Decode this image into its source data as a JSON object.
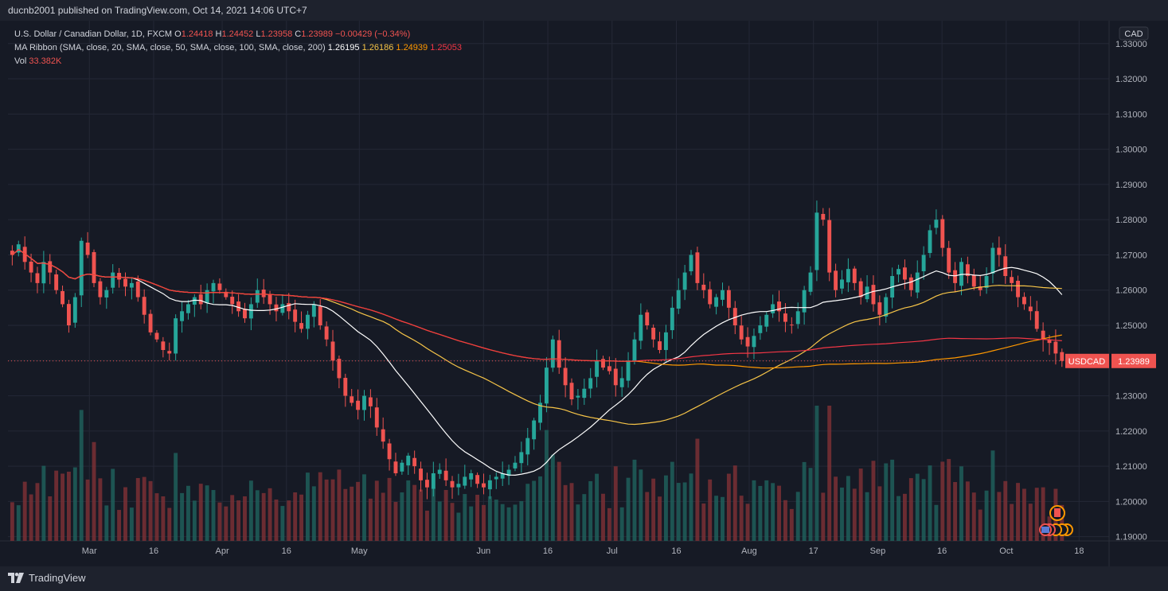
{
  "header": {
    "publisher": "ducnb2001 published on TradingView.com, Oct 14, 2021 14:06 UTC+7"
  },
  "legend": {
    "symbol": "U.S. Dollar / Canadian Dollar, 1D, FXCM",
    "o_label": "O",
    "o": "1.24418",
    "h_label": "H",
    "h": "1.24452",
    "l_label": "L",
    "l": "1.23958",
    "c_label": "C",
    "c": "1.23989",
    "change": "−0.00429 (−0.34%)",
    "ma_label": "MA Ribbon (SMA, close, 20, SMA, close, 50, SMA, close, 100, SMA, close, 200)",
    "ma20": "1.26195",
    "ma50": "1.26186",
    "ma100": "1.24939",
    "ma200": "1.25053",
    "vol_label": "Vol",
    "vol": "33.382K"
  },
  "price_tag": {
    "symbol": "USDCAD",
    "value": "1.23989"
  },
  "footer": {
    "brand": "TradingView"
  },
  "colors": {
    "up": "#26a69a",
    "down": "#ef5350",
    "ma20": "#ffffff",
    "ma50": "#f7c548",
    "ma100": "#ff9800",
    "ma200": "#f23645"
  },
  "chart_data": {
    "type": "candlestick",
    "currency": "CAD",
    "y_ticks": [
      "1.33000",
      "1.32000",
      "1.31000",
      "1.30000",
      "1.29000",
      "1.28000",
      "1.27000",
      "1.26000",
      "1.25000",
      "1.24000",
      "1.23000",
      "1.22000",
      "1.21000",
      "1.20000",
      "1.19000"
    ],
    "ylim": [
      1.1888,
      1.3365
    ],
    "x_labels": [
      {
        "label": "Mar",
        "date": "2021-03-01"
      },
      {
        "label": "16",
        "date": "2021-03-16"
      },
      {
        "label": "Apr",
        "date": "2021-04-01"
      },
      {
        "label": "16",
        "date": "2021-04-16"
      },
      {
        "label": "May",
        "date": "2021-05-03"
      },
      {
        "label": "Jun",
        "date": "2021-06-01"
      },
      {
        "label": "16",
        "date": "2021-06-16"
      },
      {
        "label": "Jul",
        "date": "2021-07-01"
      },
      {
        "label": "16",
        "date": "2021-07-16"
      },
      {
        "label": "Aug",
        "date": "2021-08-02"
      },
      {
        "label": "17",
        "date": "2021-08-17"
      },
      {
        "label": "Sep",
        "date": "2021-09-01"
      },
      {
        "label": "16",
        "date": "2021-09-16"
      },
      {
        "label": "Oct",
        "date": "2021-10-01"
      },
      {
        "label": "18",
        "date": "2021-10-18"
      }
    ],
    "x_range": [
      "2021-02-10",
      "2021-10-25"
    ],
    "ohlc_closes": [
      1.27,
      1.273,
      1.268,
      1.265,
      1.262,
      1.268,
      1.265,
      1.26,
      1.256,
      1.25,
      1.258,
      1.274,
      1.27,
      1.262,
      1.258,
      1.26,
      1.265,
      1.263,
      1.261,
      1.262,
      1.258,
      1.253,
      1.248,
      1.246,
      1.243,
      1.242,
      1.252,
      1.254,
      1.256,
      1.258,
      1.256,
      1.26,
      1.262,
      1.26,
      1.258,
      1.256,
      1.254,
      1.252,
      1.256,
      1.26,
      1.258,
      1.256,
      1.254,
      1.256,
      1.254,
      1.251,
      1.249,
      1.253,
      1.256,
      1.25,
      1.246,
      1.24,
      1.235,
      1.23,
      1.228,
      1.226,
      1.23,
      1.227,
      1.221,
      1.217,
      1.212,
      1.208,
      1.211,
      1.213,
      1.21,
      1.206,
      1.204,
      1.208,
      1.209,
      1.206,
      1.204,
      1.205,
      1.207,
      1.208,
      1.205,
      1.204,
      1.206,
      1.207,
      1.208,
      1.209,
      1.211,
      1.214,
      1.218,
      1.223,
      1.228,
      1.238,
      1.246,
      1.238,
      1.233,
      1.229,
      1.23,
      1.232,
      1.235,
      1.24,
      1.238,
      1.237,
      1.233,
      1.235,
      1.24,
      1.246,
      1.253,
      1.25,
      1.246,
      1.243,
      1.248,
      1.255,
      1.26,
      1.265,
      1.27,
      1.262,
      1.26,
      1.256,
      1.258,
      1.26,
      1.255,
      1.25,
      1.246,
      1.244,
      1.247,
      1.25,
      1.253,
      1.256,
      1.254,
      1.251,
      1.25,
      1.254,
      1.26,
      1.265,
      1.282,
      1.28,
      1.265,
      1.26,
      1.263,
      1.266,
      1.262,
      1.258,
      1.261,
      1.256,
      1.253,
      1.258,
      1.264,
      1.266,
      1.263,
      1.26,
      1.265,
      1.27,
      1.277,
      1.28,
      1.272,
      1.265,
      1.262,
      1.268,
      1.264,
      1.261,
      1.26,
      1.264,
      1.272,
      1.27,
      1.264,
      1.262,
      1.258,
      1.256,
      1.254,
      1.249,
      1.246,
      1.245,
      1.242,
      1.2399
    ],
    "series": [
      {
        "name": "Vol",
        "type": "histogram",
        "last": "33.382K"
      },
      {
        "name": "SMA 20",
        "last": 1.26195
      },
      {
        "name": "SMA 50",
        "last": 1.26186
      },
      {
        "name": "SMA 100",
        "last": 1.24939
      },
      {
        "name": "SMA 200",
        "last": 1.25053
      }
    ],
    "last_price": 1.23989,
    "grid": true
  }
}
